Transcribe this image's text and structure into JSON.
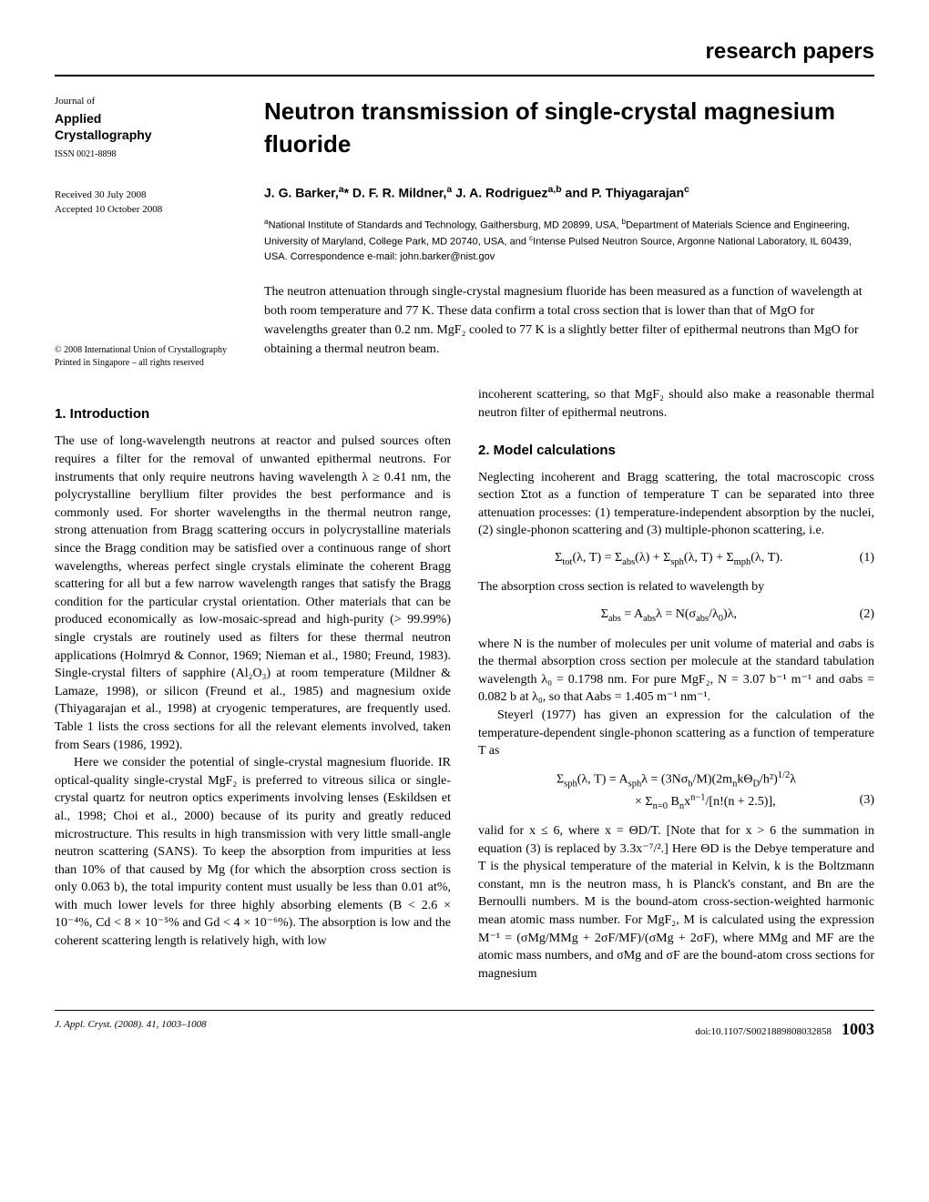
{
  "header": {
    "section_label": "research papers"
  },
  "sidebar": {
    "journal_label": "Journal of",
    "journal_name_l1": "Applied",
    "journal_name_l2": "Crystallography",
    "issn": "ISSN 0021-8898",
    "received": "Received 30 July 2008",
    "accepted": "Accepted 10 October 2008",
    "copyright_l1": "© 2008 International Union of Crystallography",
    "copyright_l2": "Printed in Singapore – all rights reserved"
  },
  "article": {
    "title": "Neutron transmission of single-crystal magnesium fluoride",
    "authors_html": "J. G. Barker,<sup>a</sup>* D. F. R. Mildner,<sup>a</sup> J. A. Rodriguez<sup>a,b</sup> and P. Thiyagarajan<sup>c</sup>",
    "affiliations_html": "<sup>a</sup>National Institute of Standards and Technology, Gaithersburg, MD 20899, USA, <sup>b</sup>Department of Materials Science and Engineering, University of Maryland, College Park, MD 20740, USA, and <sup>c</sup>Intense Pulsed Neutron Source, Argonne National Laboratory, IL 60439, USA. Correspondence e-mail: john.barker@nist.gov",
    "abstract": "The neutron attenuation through single-crystal magnesium fluoride has been measured as a function of wavelength at both room temperature and 77 K. These data confirm a total cross section that is lower than that of MgO for wavelengths greater than 0.2 nm. MgF₂ cooled to 77 K is a slightly better filter of epithermal neutrons than MgO for obtaining a thermal neutron beam."
  },
  "sections": {
    "s1_title": "1. Introduction",
    "s1_p1": "The use of long-wavelength neutrons at reactor and pulsed sources often requires a filter for the removal of unwanted epithermal neutrons. For instruments that only require neutrons having wavelength λ ≥ 0.41 nm, the polycrystalline beryllium filter provides the best performance and is commonly used. For shorter wavelengths in the thermal neutron range, strong attenuation from Bragg scattering occurs in polycrystalline materials since the Bragg condition may be satisfied over a continuous range of short wavelengths, whereas perfect single crystals eliminate the coherent Bragg scattering for all but a few narrow wavelength ranges that satisfy the Bragg condition for the particular crystal orientation. Other materials that can be produced economically as low-mosaic-spread and high-purity (> 99.99%) single crystals are routinely used as filters for these thermal neutron applications (Holmryd & Connor, 1969; Nieman et al., 1980; Freund, 1983). Single-crystal filters of sapphire (Al₂O₃) at room temperature (Mildner & Lamaze, 1998), or silicon (Freund et al., 1985) and magnesium oxide (Thiyagarajan et al., 1998) at cryogenic temperatures, are frequently used. Table 1 lists the cross sections for all the relevant elements involved, taken from Sears (1986, 1992).",
    "s1_p2": "Here we consider the potential of single-crystal magnesium fluoride. IR optical-quality single-crystal MgF₂ is preferred to vitreous silica or single-crystal quartz for neutron optics experiments involving lenses (Eskildsen et al., 1998; Choi et al., 2000) because of its purity and greatly reduced microstructure. This results in high transmission with very little small-angle neutron scattering (SANS). To keep the absorption from impurities at less than 10% of that caused by Mg (for which the absorption cross section is only 0.063 b), the total impurity content must usually be less than 0.01 at%, with much lower levels for three highly absorbing elements (B < 2.6 × 10⁻⁴%, Cd < 8 × 10⁻⁵% and Gd < 4 × 10⁻⁶%). The absorption is low and the coherent scattering length is relatively high, with low",
    "s1_p3": "incoherent scattering, so that MgF₂ should also make a reasonable thermal neutron filter of epithermal neutrons.",
    "s2_title": "2. Model calculations",
    "s2_p1": "Neglecting incoherent and Bragg scattering, the total macroscopic cross section Σtot as a function of temperature T can be separated into three attenuation processes: (1) temperature-independent absorption by the nuclei, (2) single-phonon scattering and (3) multiple-phonon scattering, i.e.",
    "eq1": "Σ<sub>tot</sub>(λ, T) = Σ<sub>abs</sub>(λ) + Σ<sub>sph</sub>(λ, T) + Σ<sub>mph</sub>(λ, T).",
    "eq1_num": "(1)",
    "s2_p2": "The absorption cross section is related to wavelength by",
    "eq2": "Σ<sub>abs</sub> = A<sub>abs</sub>λ = N(σ<sub>abs</sub>/λ<sub>0</sub>)λ,",
    "eq2_num": "(2)",
    "s2_p3": "where N is the number of molecules per unit volume of material and σabs is the thermal absorption cross section per molecule at the standard tabulation wavelength λ₀ = 0.1798 nm. For pure MgF₂, N = 3.07 b⁻¹ m⁻¹ and σabs = 0.082 b at λ₀, so that Aabs = 1.405 m⁻¹ nm⁻¹.",
    "s2_p4": "Steyerl (1977) has given an expression for the calculation of the temperature-dependent single-phonon scattering as a function of temperature T as",
    "eq3_l1": "Σ<sub>sph</sub>(λ, T) = A<sub>sph</sub>λ = (3Nσ<sub>b</sub>/M)(2m<sub>n</sub>kΘ<sub>D</sub>/h²)<sup>1/2</sup>λ",
    "eq3_l2": "× Σ<sub>n=0</sub> B<sub>n</sub>x<sup>n−1</sup>/[n!(n + 2.5)],",
    "eq3_num": "(3)",
    "s2_p5": "valid for x ≤ 6, where x = ΘD/T. [Note that for x > 6 the summation in equation (3) is replaced by 3.3x⁻⁷/².] Here ΘD is the Debye temperature and T is the physical temperature of the material in Kelvin, k is the Boltzmann constant, mn is the neutron mass, h is Planck's constant, and Bn are the Bernoulli numbers. M is the bound-atom cross-section-weighted harmonic mean atomic mass number. For MgF₂, M is calculated using the expression M⁻¹ = (σMg/MMg + 2σF/MF)/(σMg + 2σF), where MMg and MF are the atomic mass numbers, and σMg and σF are the bound-atom cross sections for magnesium"
  },
  "footer": {
    "citation": "J. Appl. Cryst. (2008). 41, 1003–1008",
    "doi": "doi:10.1107/S0021889808032858",
    "page": "1003"
  }
}
